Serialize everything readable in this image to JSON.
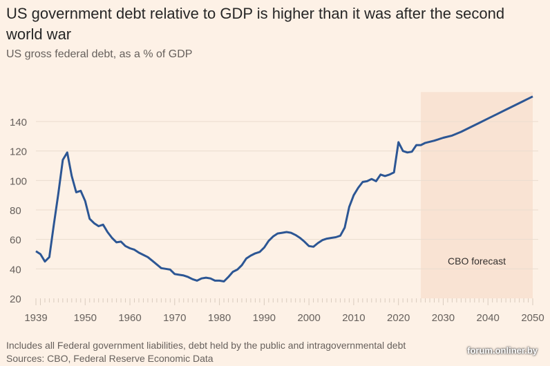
{
  "chart_data": {
    "type": "line",
    "title": "US government debt relative to GDP is higher than it was after the second world war",
    "subtitle": "US gross federal debt, as a % of GDP",
    "xlabel": "",
    "ylabel": "",
    "xlim": [
      1939,
      2050
    ],
    "ylim": [
      20,
      160
    ],
    "x_ticks": [
      "1939",
      "1950",
      "1960",
      "1970",
      "1980",
      "1990",
      "2000",
      "2010",
      "2020",
      "2030",
      "2040",
      "2050"
    ],
    "y_ticks": [
      "20",
      "40",
      "60",
      "80",
      "100",
      "120",
      "140"
    ],
    "grid": true,
    "annotation": {
      "label": "CBO forecast",
      "range": [
        2025,
        2050
      ]
    },
    "series": [
      {
        "name": "US gross federal debt",
        "color": "#2c5694",
        "x": [
          1939,
          1940,
          1941,
          1942,
          1943,
          1944,
          1945,
          1946,
          1947,
          1948,
          1949,
          1950,
          1951,
          1952,
          1953,
          1954,
          1955,
          1956,
          1957,
          1958,
          1959,
          1960,
          1961,
          1962,
          1963,
          1964,
          1965,
          1966,
          1967,
          1968,
          1969,
          1970,
          1971,
          1972,
          1973,
          1974,
          1975,
          1976,
          1977,
          1978,
          1979,
          1980,
          1981,
          1982,
          1983,
          1984,
          1985,
          1986,
          1987,
          1988,
          1989,
          1990,
          1991,
          1992,
          1993,
          1994,
          1995,
          1996,
          1997,
          1998,
          1999,
          2000,
          2001,
          2002,
          2003,
          2004,
          2005,
          2006,
          2007,
          2008,
          2009,
          2010,
          2011,
          2012,
          2013,
          2014,
          2015,
          2016,
          2017,
          2018,
          2019,
          2020,
          2021,
          2022,
          2023,
          2024,
          2025,
          2026,
          2028,
          2030,
          2032,
          2034,
          2036,
          2038,
          2040,
          2042,
          2044,
          2046,
          2048,
          2050
        ],
        "y": [
          52,
          50,
          45,
          48,
          70,
          91,
          114,
          119,
          103,
          92,
          93,
          86,
          74,
          71,
          69,
          70,
          65,
          61,
          58,
          58.5,
          55.5,
          54,
          53,
          51,
          49.5,
          48,
          45.5,
          43,
          40.5,
          40,
          39.5,
          36.5,
          36,
          35.5,
          34.5,
          33,
          32,
          33.5,
          34,
          33.5,
          32,
          32,
          31.5,
          34.5,
          38,
          39.5,
          42.5,
          47,
          49,
          50.5,
          51.5,
          54.5,
          59,
          62,
          64,
          64.5,
          65,
          64.5,
          63,
          61,
          58.5,
          55.5,
          55,
          57.5,
          59.5,
          60.5,
          61,
          61.5,
          62.5,
          68,
          82,
          90,
          95,
          99,
          99.5,
          101,
          99.5,
          104,
          103,
          104,
          105.5,
          126,
          120,
          119,
          119.5,
          124,
          124,
          125.5,
          127,
          129,
          130.5,
          133,
          136,
          139,
          142,
          145,
          148,
          151,
          154,
          157
        ]
      }
    ]
  },
  "footer": {
    "note": "Includes all Federal government liabilities, debt held by the public and intragovernmental debt",
    "sources": "Sources: CBO, Federal Reserve Economic Data"
  },
  "watermark": "forum.onliner.by"
}
